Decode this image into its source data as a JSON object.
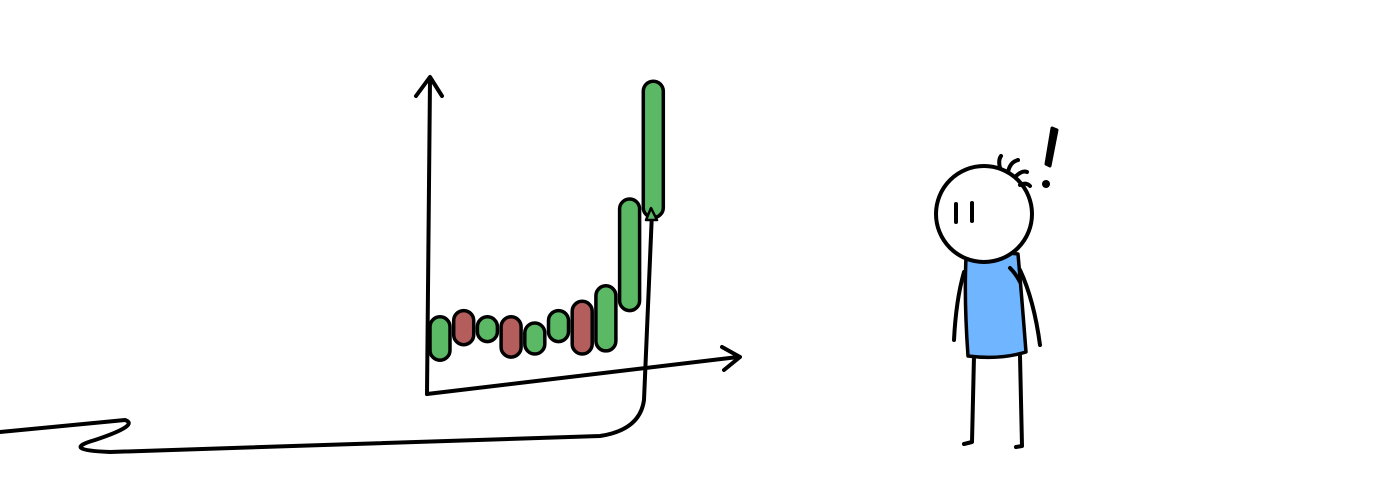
{
  "illustration": {
    "subject": "stick-figure-surprised-by-chart",
    "colors": {
      "ink": "#000000",
      "background": "#ffffff",
      "candle_up": "#5bb865",
      "candle_down": "#b35e5c",
      "shirt": "#6fb5ff"
    }
  },
  "chart_data": {
    "type": "candlestick",
    "title": "",
    "xlabel": "",
    "ylabel": "",
    "ylim": [
      0,
      100
    ],
    "candles": [
      {
        "dir": "up",
        "low": 8,
        "high": 22
      },
      {
        "dir": "down",
        "low": 13,
        "high": 24
      },
      {
        "dir": "up",
        "low": 14,
        "high": 22
      },
      {
        "dir": "down",
        "low": 9,
        "high": 22
      },
      {
        "dir": "up",
        "low": 10,
        "high": 20
      },
      {
        "dir": "up",
        "low": 14,
        "high": 24
      },
      {
        "dir": "down",
        "low": 10,
        "high": 27
      },
      {
        "dir": "up",
        "low": 11,
        "high": 32
      },
      {
        "dir": "up",
        "low": 24,
        "high": 60
      },
      {
        "dir": "up",
        "low": 54,
        "high": 98
      }
    ]
  }
}
